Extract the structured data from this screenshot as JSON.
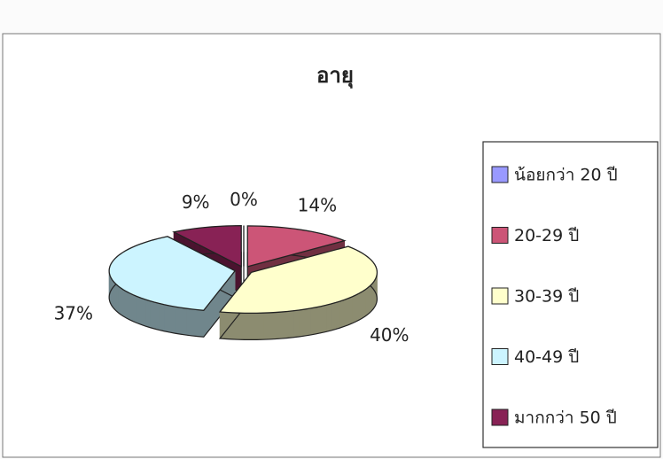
{
  "chart_data": {
    "type": "pie3d",
    "title": "อายุ",
    "categories": [
      "น้อยกว่า 20 ปี",
      "20-29 ปี",
      "30-39 ปี",
      "40-49 ปี",
      "มากกว่า 50 ปี"
    ],
    "values": [
      0,
      14,
      40,
      37,
      9
    ],
    "value_labels": [
      "0%",
      "14%",
      "40%",
      "37%",
      "9%"
    ],
    "colors": [
      "#9999ff",
      "#cc5577",
      "#ffffcc",
      "#ccf4ff",
      "#882255"
    ],
    "legend": "right"
  }
}
